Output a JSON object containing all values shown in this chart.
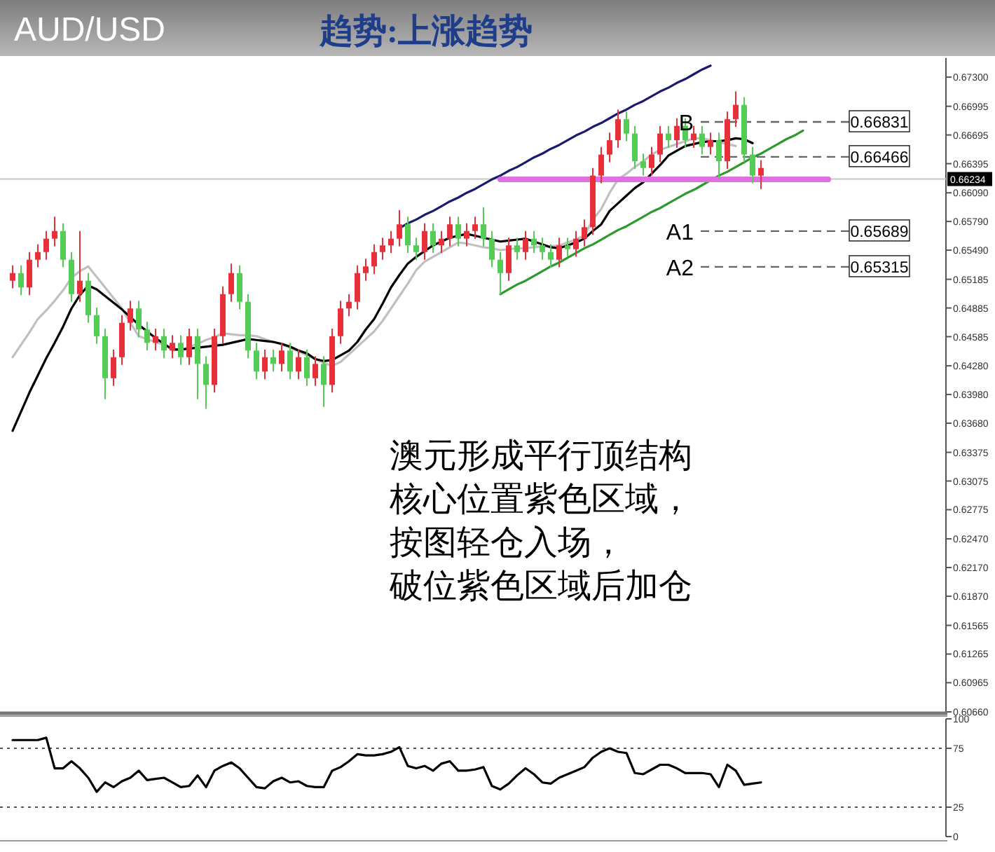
{
  "chart_data": [
    {
      "type": "candlestick",
      "title": "AUD/USD",
      "subtitle": "趋势:上涨趋势",
      "categories": [
        null,
        null,
        null,
        null,
        null,
        null,
        null,
        null,
        null,
        null,
        null,
        null,
        null,
        null,
        null,
        null,
        null,
        null,
        null,
        null,
        null,
        null,
        null,
        null,
        null,
        null,
        null,
        null,
        null,
        null,
        null,
        null,
        null,
        null,
        null,
        null,
        null,
        null,
        null,
        null,
        null,
        null,
        null,
        null,
        null,
        null,
        null,
        null,
        null,
        null,
        null,
        null,
        null,
        null,
        null,
        null,
        null,
        null,
        null,
        null,
        null,
        null,
        null,
        null,
        null,
        null,
        null,
        null,
        null,
        null,
        null,
        null,
        null,
        null,
        null,
        null,
        null,
        null,
        null,
        null,
        null,
        null,
        null,
        null,
        null,
        null,
        null,
        null,
        null,
        null,
        null,
        null,
        null,
        null,
        null,
        null,
        null,
        null,
        null,
        null,
        null,
        null,
        null,
        null,
        null,
        null,
        null,
        null,
        null,
        null,
        null,
        null
      ],
      "ohlc": [
        null,
        [
          0.6517,
          0.6533,
          0.6509,
          0.6525
        ],
        [
          0.6525,
          0.6533,
          0.6502,
          0.651
        ],
        [
          0.651,
          0.6547,
          0.6502,
          0.6539
        ],
        [
          0.6539,
          0.6555,
          0.6531,
          0.6547
        ],
        [
          0.6547,
          0.6569,
          0.6539,
          0.6561
        ],
        [
          0.6561,
          0.6584,
          0.6553,
          0.6569
        ],
        [
          0.6569,
          0.6577,
          0.6531,
          0.6539
        ],
        [
          0.6539,
          0.6547,
          0.6495,
          0.6503
        ],
        [
          0.6503,
          0.6569,
          0.6495,
          0.6517
        ],
        [
          0.6517,
          0.6525,
          0.6473,
          0.6481
        ],
        [
          0.6481,
          0.6489,
          0.6451,
          0.6459
        ],
        [
          0.6459,
          0.6467,
          0.6393,
          0.6415
        ],
        [
          0.6415,
          0.6445,
          0.6407,
          0.6437
        ],
        [
          0.6437,
          0.6481,
          0.6429,
          0.6473
        ],
        [
          0.6473,
          0.6496,
          0.6465,
          0.6488
        ],
        [
          0.6488,
          0.6496,
          0.6458,
          0.6466
        ],
        [
          0.6466,
          0.6474,
          0.6444,
          0.6452
        ],
        [
          0.6452,
          0.6467,
          0.6444,
          0.6459
        ],
        [
          0.6459,
          0.6467,
          0.6436,
          0.6444
        ],
        [
          0.6444,
          0.646,
          0.6436,
          0.6452
        ],
        [
          0.6452,
          0.646,
          0.6429,
          0.6437
        ],
        [
          0.6437,
          0.6467,
          0.6429,
          0.6459
        ],
        [
          0.6459,
          0.6467,
          0.6393,
          0.643
        ],
        [
          0.643,
          0.6438,
          0.6383,
          0.6408
        ],
        [
          0.6408,
          0.6467,
          0.64,
          0.6459
        ],
        [
          0.6459,
          0.6511,
          0.6451,
          0.6503
        ],
        [
          0.6503,
          0.6535,
          0.6495,
          0.6525
        ],
        [
          0.6525,
          0.6533,
          0.6487,
          0.6495
        ],
        [
          0.6495,
          0.6503,
          0.6436,
          0.6444
        ],
        [
          0.6444,
          0.6452,
          0.6414,
          0.6422
        ],
        [
          0.6422,
          0.6445,
          0.6414,
          0.6437
        ],
        [
          0.6437,
          0.6445,
          0.6422,
          0.643
        ],
        [
          0.643,
          0.6452,
          0.6422,
          0.6444
        ],
        [
          0.6444,
          0.6452,
          0.6414,
          0.6422
        ],
        [
          0.6422,
          0.6445,
          0.6414,
          0.6437
        ],
        [
          0.6437,
          0.6445,
          0.6407,
          0.6415
        ],
        [
          0.6415,
          0.6438,
          0.6407,
          0.643
        ],
        [
          0.643,
          0.6438,
          0.6385,
          0.6408
        ],
        [
          0.6408,
          0.6467,
          0.64,
          0.6459
        ],
        [
          0.6459,
          0.6496,
          0.6451,
          0.6488
        ],
        [
          0.6488,
          0.6503,
          0.648,
          0.6495
        ],
        [
          0.6495,
          0.6533,
          0.6487,
          0.6525
        ],
        [
          0.6525,
          0.654,
          0.6517,
          0.6532
        ],
        [
          0.6532,
          0.6555,
          0.6524,
          0.6547
        ],
        [
          0.6547,
          0.6562,
          0.6539,
          0.6554
        ],
        [
          0.6554,
          0.6569,
          0.6546,
          0.6561
        ],
        [
          0.6561,
          0.6591,
          0.6553,
          0.6576
        ],
        [
          0.6576,
          0.6584,
          0.6546,
          0.6554
        ],
        [
          0.6554,
          0.6562,
          0.6539,
          0.6547
        ],
        [
          0.6547,
          0.6577,
          0.6539,
          0.6569
        ],
        [
          0.6569,
          0.6577,
          0.6546,
          0.6554
        ],
        [
          0.6554,
          0.6569,
          0.6546,
          0.6561
        ],
        [
          0.6561,
          0.6584,
          0.6553,
          0.6576
        ],
        [
          0.6576,
          0.6584,
          0.6553,
          0.6561
        ],
        [
          0.6561,
          0.6577,
          0.6553,
          0.6569
        ],
        [
          0.6569,
          0.6584,
          0.6561,
          0.6576
        ],
        [
          0.6576,
          0.6594,
          0.6553,
          0.6561
        ],
        [
          0.6561,
          0.6569,
          0.6531,
          0.6539
        ],
        [
          0.6539,
          0.6547,
          0.6503,
          0.6525
        ],
        [
          0.6525,
          0.6562,
          0.6517,
          0.6554
        ],
        [
          0.6554,
          0.6562,
          0.6539,
          0.6547
        ],
        [
          0.6547,
          0.6569,
          0.6539,
          0.6561
        ],
        [
          0.6561,
          0.6569,
          0.6546,
          0.6554
        ],
        [
          0.6554,
          0.6562,
          0.6539,
          0.6547
        ],
        [
          0.6547,
          0.6555,
          0.6531,
          0.6539
        ],
        [
          0.6539,
          0.6562,
          0.6531,
          0.6554
        ],
        [
          0.6554,
          0.6562,
          0.6542,
          0.655
        ],
        [
          0.655,
          0.6569,
          0.6542,
          0.6561
        ],
        [
          0.6561,
          0.6581,
          0.6553,
          0.6573
        ],
        [
          0.6573,
          0.6635,
          0.6565,
          0.6627
        ],
        [
          0.6627,
          0.6657,
          0.6619,
          0.6649
        ],
        [
          0.6649,
          0.6672,
          0.6641,
          0.6664
        ],
        [
          0.6664,
          0.6696,
          0.6656,
          0.6686
        ],
        [
          0.6686,
          0.6694,
          0.6663,
          0.6671
        ],
        [
          0.6671,
          0.6679,
          0.6634,
          0.6642
        ],
        [
          0.6642,
          0.665,
          0.6627,
          0.6635
        ],
        [
          0.6635,
          0.6657,
          0.6627,
          0.6649
        ],
        [
          0.6649,
          0.6679,
          0.6641,
          0.6671
        ],
        [
          0.6671,
          0.6679,
          0.6656,
          0.6664
        ],
        [
          0.6664,
          0.6687,
          0.6656,
          0.6679
        ],
        [
          0.6679,
          0.6687,
          0.6656,
          0.6664
        ],
        [
          0.6664,
          0.6679,
          0.6656,
          0.6671
        ],
        [
          0.6671,
          0.6679,
          0.6649,
          0.6657
        ],
        [
          0.6657,
          0.6672,
          0.6649,
          0.6664
        ],
        [
          0.6664,
          0.6672,
          0.6623,
          0.6642
        ],
        [
          0.6642,
          0.6694,
          0.6634,
          0.6686
        ],
        [
          0.6686,
          0.6715,
          0.6678,
          0.6701
        ],
        [
          0.6701,
          0.6709,
          0.6641,
          0.6649
        ],
        [
          0.6649,
          0.6657,
          0.6619,
          0.6627
        ],
        [
          0.6627,
          0.6643,
          0.6613,
          0.6635
        ],
        null,
        null,
        null,
        null,
        null,
        null,
        null,
        null,
        null,
        null,
        null,
        null,
        null,
        null,
        null,
        null,
        null,
        null,
        null,
        null,
        null
      ],
      "series": [
        {
          "type": "line",
          "color": "#c0c0c0",
          "values": [
            null,
            0.6437,
            0.645,
            0.6463,
            0.6477,
            0.6486,
            0.6496,
            0.6507,
            0.652,
            0.6527,
            0.6532,
            0.6521,
            0.651,
            0.6499,
            0.6488,
            0.6473,
            0.6459,
            0.6456,
            0.6453,
            0.645,
            0.6447,
            0.6444,
            0.6448,
            0.6451,
            0.6455,
            0.6458,
            0.6462,
            0.6461,
            0.646,
            0.646,
            0.6459,
            0.6456,
            0.6453,
            0.645,
            0.6447,
            0.6443,
            0.6439,
            0.6435,
            0.6431,
            0.6428,
            0.6432,
            0.644,
            0.6448,
            0.6456,
            0.6464,
            0.6475,
            0.6488,
            0.6501,
            0.6514,
            0.6528,
            0.6537,
            0.6542,
            0.6547,
            0.6552,
            0.6557,
            0.6556,
            0.6554,
            0.6552,
            0.6551,
            0.6549,
            0.655,
            0.6551,
            0.6551,
            0.6552,
            0.6553,
            0.6553,
            0.6554,
            0.6557,
            0.656,
            0.6564,
            0.6581,
            0.6592,
            0.6609,
            0.6623,
            0.6629,
            0.6636,
            0.6642,
            0.6649,
            0.6654,
            0.6657,
            0.666,
            0.6663,
            0.6666,
            0.6666,
            0.6664,
            0.6662,
            0.666,
            0.6658,
            null,
            null,
            null,
            null,
            null,
            null,
            null,
            null,
            null,
            null,
            null,
            null,
            null,
            null,
            null,
            null,
            null,
            null,
            null,
            null,
            null,
            null,
            null,
            null
          ]
        },
        {
          "type": "line",
          "color": "#000000",
          "values": [
            null,
            0.636,
            0.638,
            0.64,
            0.6418,
            0.6436,
            0.6452,
            0.6469,
            0.6488,
            0.6502,
            0.6512,
            0.6508,
            0.6501,
            0.6494,
            0.6487,
            0.6479,
            0.6471,
            0.6464,
            0.6457,
            0.6451,
            0.6445,
            0.6445,
            0.6446,
            0.6447,
            0.6448,
            0.6449,
            0.645,
            0.6452,
            0.6454,
            0.6456,
            0.6455,
            0.6454,
            0.6453,
            0.6451,
            0.6448,
            0.6444,
            0.6441,
            0.6435,
            0.6433,
            0.6434,
            0.6439,
            0.6444,
            0.6453,
            0.6466,
            0.6477,
            0.6493,
            0.651,
            0.6523,
            0.6535,
            0.6542,
            0.6548,
            0.6554,
            0.6558,
            0.6562,
            0.6564,
            0.6566,
            0.6564,
            0.6562,
            0.656,
            0.6558,
            0.6559,
            0.656,
            0.6561,
            0.6558,
            0.6555,
            0.6552,
            0.6551,
            0.6554,
            0.6557,
            0.6561,
            0.6569,
            0.6576,
            0.659,
            0.6598,
            0.6606,
            0.6614,
            0.662,
            0.6629,
            0.6638,
            0.6648,
            0.6653,
            0.6658,
            0.666,
            0.6662,
            0.6663,
            0.6663,
            0.6664,
            0.6666,
            0.6665,
            0.6661,
            null,
            null,
            null,
            null,
            null,
            null,
            null,
            null,
            null,
            null,
            null,
            null,
            null,
            null,
            null,
            null,
            null,
            null,
            null,
            null,
            null,
            null
          ]
        },
        {
          "type": "line",
          "color": "#1a1a6e",
          "values": [
            null,
            null,
            null,
            null,
            null,
            null,
            null,
            null,
            null,
            null,
            null,
            null,
            null,
            null,
            null,
            null,
            null,
            null,
            null,
            null,
            null,
            null,
            null,
            null,
            null,
            null,
            null,
            null,
            null,
            null,
            null,
            null,
            null,
            null,
            null,
            null,
            null,
            null,
            null,
            null,
            null,
            null,
            null,
            null,
            null,
            null,
            null,
            0.6572,
            0.6577,
            0.6581,
            0.6586,
            0.659,
            0.6595,
            0.66,
            0.6604,
            0.6609,
            0.6613,
            0.6618,
            0.6623,
            0.6627,
            0.6632,
            0.6636,
            0.6641,
            0.6646,
            0.665,
            0.6655,
            0.6659,
            0.6664,
            0.6669,
            0.6673,
            0.6678,
            0.6682,
            0.6687,
            0.6692,
            0.6696,
            0.6701,
            0.6705,
            0.671,
            0.6715,
            0.6719,
            0.6724,
            0.6728,
            0.6733,
            0.6738,
            0.6742,
            null,
            null,
            null,
            null,
            null,
            null,
            null,
            null,
            null,
            null,
            null,
            null,
            null,
            null,
            null,
            null,
            null,
            null,
            null,
            null,
            null,
            null,
            null,
            null,
            null,
            null,
            null
          ]
        },
        {
          "type": "line",
          "color": "#2e9a2e",
          "values": [
            null,
            null,
            null,
            null,
            null,
            null,
            null,
            null,
            null,
            null,
            null,
            null,
            null,
            null,
            null,
            null,
            null,
            null,
            null,
            null,
            null,
            null,
            null,
            null,
            null,
            null,
            null,
            null,
            null,
            null,
            null,
            null,
            null,
            null,
            null,
            null,
            null,
            null,
            null,
            null,
            null,
            null,
            null,
            null,
            null,
            null,
            null,
            null,
            null,
            null,
            null,
            null,
            null,
            null,
            null,
            null,
            null,
            null,
            null,
            0.6503,
            0.6508,
            0.6513,
            0.6517,
            0.6522,
            0.6527,
            0.6532,
            0.6536,
            0.6541,
            0.6546,
            0.6551,
            0.6555,
            0.656,
            0.6565,
            0.657,
            0.6574,
            0.6579,
            0.6584,
            0.6589,
            0.6593,
            0.6598,
            0.6603,
            0.6608,
            0.6612,
            0.6617,
            0.6622,
            0.6627,
            0.6631,
            0.6636,
            0.6641,
            0.6646,
            0.665,
            0.6655,
            0.666,
            0.6665,
            0.6669,
            0.6674,
            null,
            null,
            null,
            null,
            null,
            null,
            null,
            null,
            null,
            null,
            null,
            null,
            null,
            null,
            null,
            null
          ]
        },
        {
          "type": "line",
          "color": "#e070e0",
          "values": [
            null,
            null,
            null,
            null,
            null,
            null,
            null,
            null,
            null,
            null,
            null,
            null,
            null,
            null,
            null,
            null,
            null,
            null,
            null,
            null,
            null,
            null,
            null,
            null,
            null,
            null,
            null,
            null,
            null,
            null,
            null,
            null,
            null,
            null,
            null,
            null,
            null,
            null,
            null,
            null,
            null,
            null,
            null,
            null,
            null,
            null,
            null,
            null,
            null,
            null,
            null,
            null,
            null,
            null,
            null,
            null,
            null,
            null,
            null,
            0.6623,
            0.6623,
            0.6623,
            0.6623,
            0.6623,
            0.6623,
            0.6623,
            0.6623,
            0.6623,
            0.6623,
            0.6623,
            0.6623,
            0.6623,
            0.6623,
            0.6623,
            0.6623,
            0.6623,
            0.6623,
            0.6623,
            0.6623,
            0.6623,
            0.6623,
            0.6623,
            0.6623,
            0.6623,
            0.6623,
            0.6623,
            0.6623,
            0.6623,
            0.6623,
            0.6623,
            0.6623,
            0.6623,
            0.6623,
            0.6623,
            0.6623,
            0.6623,
            0.6623,
            0.6623,
            0.6623,
            null,
            null,
            null,
            null,
            null,
            null,
            null,
            null,
            null,
            null,
            null,
            null,
            null
          ]
        }
      ],
      "ylim": [
        0.6066,
        0.675
      ],
      "yticks": [
        {
          "value": 0.673,
          "label": "0.67300"
        },
        {
          "value": 0.66995,
          "label": "0.66995"
        },
        {
          "value": 0.66695,
          "label": "0.66695"
        },
        {
          "value": 0.66395,
          "label": "0.66395"
        },
        {
          "value": 0.6609,
          "label": "0.66090"
        },
        {
          "value": 0.6579,
          "label": "0.65790"
        },
        {
          "value": 0.6549,
          "label": "0.65490"
        },
        {
          "value": 0.65185,
          "label": "0.65185"
        },
        {
          "value": 0.64885,
          "label": "0.64885"
        },
        {
          "value": 0.64585,
          "label": "0.64585"
        },
        {
          "value": 0.6428,
          "label": "0.64280"
        },
        {
          "value": 0.6398,
          "label": "0.63980"
        },
        {
          "value": 0.6368,
          "label": "0.63680"
        },
        {
          "value": 0.63375,
          "label": "0.63375"
        },
        {
          "value": 0.63075,
          "label": "0.63075"
        },
        {
          "value": 0.62775,
          "label": "0.62775"
        },
        {
          "value": 0.6247,
          "label": "0.62470"
        },
        {
          "value": 0.6217,
          "label": "0.62170"
        },
        {
          "value": 0.6187,
          "label": "0.61870"
        },
        {
          "value": 0.61565,
          "label": "0.61565"
        },
        {
          "value": 0.61265,
          "label": "0.61265"
        },
        {
          "value": 0.60965,
          "label": "0.60965"
        },
        {
          "value": 0.6066,
          "label": "0.60660"
        }
      ],
      "tick_labels": "y",
      "ref_lines": [
        {
          "axis": "y",
          "value": 0.66234,
          "label": "0.66234",
          "color": "#c8c8c8",
          "line_style": "solid"
        },
        {
          "axis": "y",
          "value": 0.66831,
          "label": "0.66831",
          "color": "#666666",
          "line_style": "dashed"
        },
        {
          "axis": "y",
          "value": 0.66466,
          "label": "0.66466",
          "color": "#666666",
          "line_style": "dashed"
        },
        {
          "axis": "y",
          "value": 0.65689,
          "label": "0.65689",
          "color": "#666666",
          "line_style": "dashed"
        },
        {
          "axis": "y",
          "value": 0.65315,
          "label": "0.65315",
          "color": "#666666",
          "line_style": "dashed"
        }
      ],
      "annotations": [
        "B",
        "A1",
        "A2",
        "澳元形成平行顶结构",
        "核心位置紫色区域，",
        "按图轻仓入场，",
        "破位紫色区域后加仓"
      ]
    },
    {
      "type": "line",
      "categories": [
        null,
        null,
        null,
        null,
        null,
        null,
        null,
        null,
        null,
        null,
        null,
        null,
        null,
        null,
        null,
        null,
        null,
        null,
        null,
        null,
        null,
        null,
        null,
        null,
        null,
        null,
        null,
        null,
        null,
        null,
        null,
        null,
        null,
        null,
        null,
        null,
        null,
        null,
        null,
        null,
        null,
        null,
        null,
        null,
        null,
        null,
        null,
        null,
        null,
        null,
        null,
        null,
        null,
        null,
        null,
        null,
        null,
        null,
        null,
        null,
        null,
        null,
        null,
        null,
        null,
        null,
        null,
        null,
        null,
        null,
        null,
        null,
        null,
        null,
        null,
        null,
        null,
        null,
        null,
        null,
        null,
        null,
        null,
        null,
        null,
        null,
        null,
        null,
        null,
        null,
        null,
        null,
        null,
        null,
        null,
        null,
        null,
        null,
        null,
        null,
        null,
        null,
        null,
        null,
        null,
        null,
        null,
        null,
        null,
        null,
        null,
        null
      ],
      "series": [
        {
          "color": "#000000",
          "values": [
            null,
            82,
            82,
            82,
            82,
            84,
            58,
            58,
            64,
            58,
            50,
            38,
            46,
            42,
            47,
            50,
            56,
            48,
            49,
            50,
            46,
            42,
            43,
            52,
            42,
            56,
            60,
            63,
            58,
            50,
            42,
            41,
            47,
            50,
            46,
            47,
            43,
            42,
            42,
            56,
            59,
            64,
            70,
            69,
            69,
            70,
            72,
            76,
            60,
            58,
            60,
            56,
            62,
            64,
            56,
            56,
            57,
            59,
            43,
            40,
            45,
            52,
            58,
            53,
            46,
            45,
            50,
            53,
            56,
            59,
            67,
            72,
            75,
            72,
            71,
            54,
            53,
            57,
            61,
            61,
            58,
            54,
            54,
            54,
            53,
            42,
            61,
            56,
            44,
            45,
            46,
            null,
            null,
            null,
            null,
            null,
            null,
            null,
            null,
            null,
            null,
            null,
            null,
            null,
            null,
            null,
            null,
            null,
            null,
            null,
            null,
            null
          ]
        }
      ],
      "ylim": [
        0,
        100
      ],
      "yticks": [
        0,
        25,
        75,
        100
      ],
      "tick_labels": "y",
      "ref_lines": [
        {
          "axis": "y",
          "value": 75,
          "color": "#555555",
          "line_style": "dotted"
        },
        {
          "axis": "y",
          "value": 25,
          "color": "#555555",
          "line_style": "dotted"
        }
      ]
    }
  ]
}
